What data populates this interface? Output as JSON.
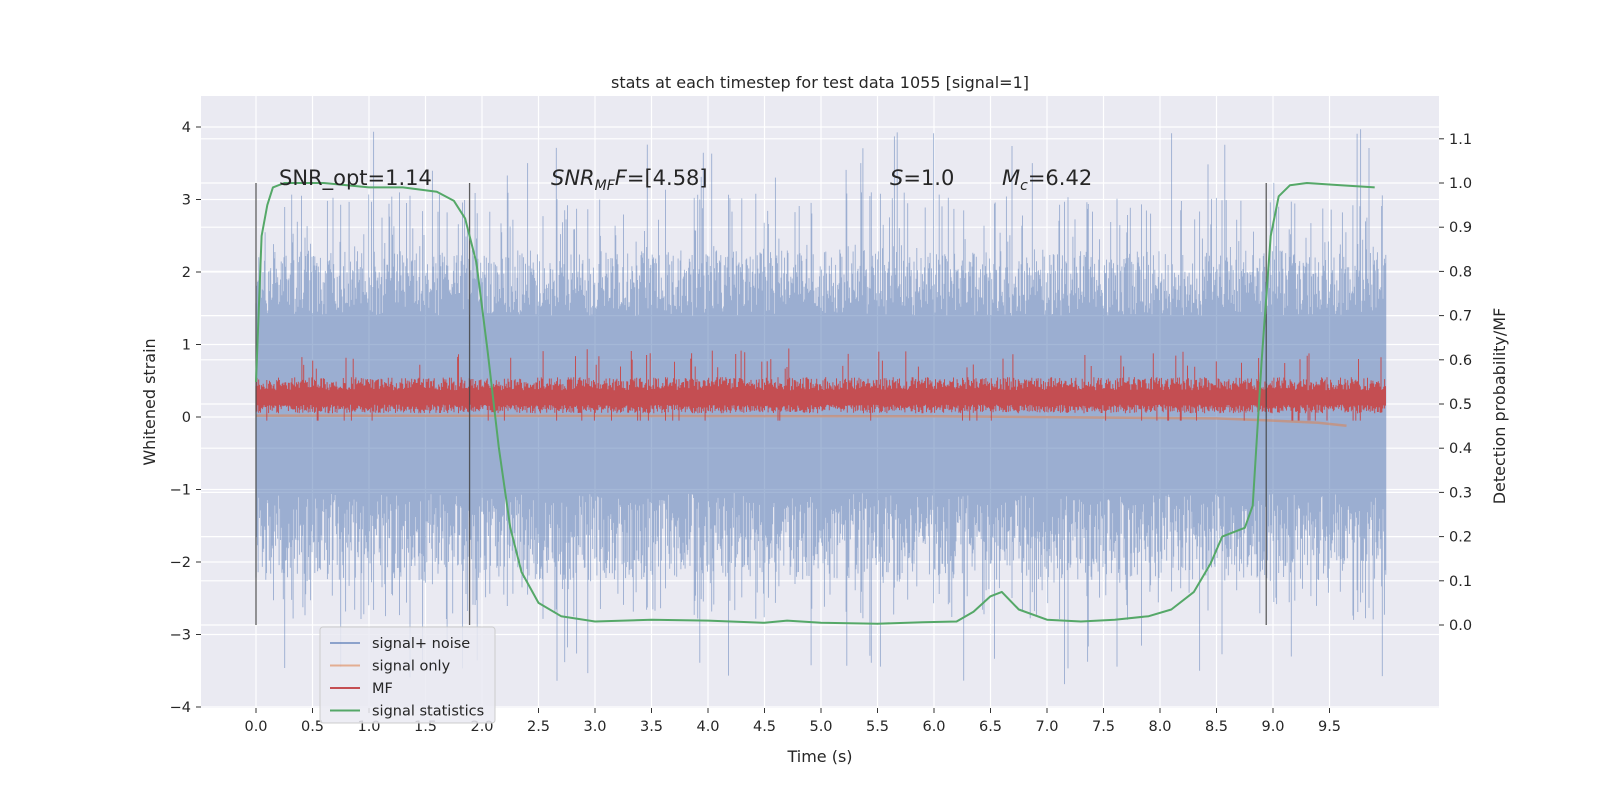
{
  "chart_data": {
    "type": "line",
    "title": "stats at each timestep for test data 1055 [signal=1]",
    "xlabel": "Time (s)",
    "ylabel": "Whitened strain",
    "y2label": "Detection probability/MF",
    "xlim": [
      -0.5,
      10.5
    ],
    "ylim": [
      -4.1,
      4.4
    ],
    "y2lim": [
      -0.2,
      1.2
    ],
    "xticks": [
      "0.0",
      "0.5",
      "1.0",
      "1.5",
      "2.0",
      "2.5",
      "3.0",
      "3.5",
      "4.0",
      "4.5",
      "5.0",
      "5.5",
      "6.0",
      "6.5",
      "7.0",
      "7.5",
      "8.0",
      "8.5",
      "9.0",
      "9.5"
    ],
    "yticks": [
      "−4",
      "−3",
      "−2",
      "−1",
      "0",
      "1",
      "2",
      "3",
      "4"
    ],
    "y2ticks": [
      "0.0",
      "0.1",
      "0.2",
      "0.3",
      "0.4",
      "0.5",
      "0.6",
      "0.7",
      "0.8",
      "0.9",
      "1.0",
      "1.1"
    ],
    "grid": true,
    "legend_position": "lower-left",
    "annotations": {
      "snr_opt": "SNR_opt=1.14",
      "snr_mf_prefix": "SNR",
      "snr_mf_sub": "MF",
      "snr_mf_suffix": "=[4.58]",
      "s_label": "S",
      "s_value": "=1.0",
      "mc_label": "M",
      "mc_sub": "c",
      "mc_value": "=6.42"
    },
    "vertical_markers": [
      0.0,
      1.89,
      8.94
    ],
    "series": [
      {
        "name": "signal+ noise",
        "color": "#4c72b0",
        "axis": "left",
        "x_range": [
          0.0,
          10.0
        ],
        "band": {
          "core": [
            -1.05,
            1.4
          ],
          "peak": [
            -2.8,
            3.1
          ],
          "extreme": [
            -3.7,
            4.05
          ]
        }
      },
      {
        "name": "signal only",
        "color": "#dd8452",
        "axis": "left",
        "x": [
          0.0,
          6.0,
          8.5,
          9.0,
          9.4,
          9.65
        ],
        "values": [
          0.02,
          0.01,
          -0.02,
          -0.05,
          -0.08,
          -0.12
        ]
      },
      {
        "name": "MF",
        "color": "#c44e52",
        "axis": "left",
        "x_range": [
          0.0,
          10.0
        ],
        "band": {
          "core": [
            0.05,
            0.55
          ],
          "peak": [
            -0.05,
            0.95
          ]
        }
      },
      {
        "name": "signal statistics",
        "color": "#55a868",
        "axis": "right",
        "x": [
          0.0,
          0.05,
          0.1,
          0.15,
          0.25,
          0.4,
          0.6,
          1.0,
          1.3,
          1.6,
          1.75,
          1.85,
          1.95,
          2.05,
          2.15,
          2.25,
          2.35,
          2.5,
          2.7,
          3.0,
          3.5,
          4.0,
          4.5,
          4.7,
          5.0,
          5.5,
          5.9,
          6.2,
          6.35,
          6.5,
          6.6,
          6.75,
          7.0,
          7.3,
          7.6,
          7.9,
          8.1,
          8.3,
          8.45,
          8.55,
          8.65,
          8.75,
          8.82,
          8.9,
          8.98,
          9.05,
          9.15,
          9.3,
          9.6,
          9.9
        ],
        "values": [
          0.55,
          0.88,
          0.95,
          0.99,
          1.0,
          1.0,
          1.0,
          0.99,
          0.99,
          0.98,
          0.96,
          0.92,
          0.82,
          0.62,
          0.4,
          0.22,
          0.12,
          0.05,
          0.02,
          0.008,
          0.012,
          0.01,
          0.005,
          0.01,
          0.005,
          0.003,
          0.006,
          0.008,
          0.03,
          0.065,
          0.075,
          0.035,
          0.012,
          0.008,
          0.012,
          0.02,
          0.035,
          0.075,
          0.14,
          0.2,
          0.21,
          0.22,
          0.27,
          0.6,
          0.88,
          0.97,
          0.995,
          1.0,
          0.995,
          0.99
        ]
      }
    ]
  }
}
